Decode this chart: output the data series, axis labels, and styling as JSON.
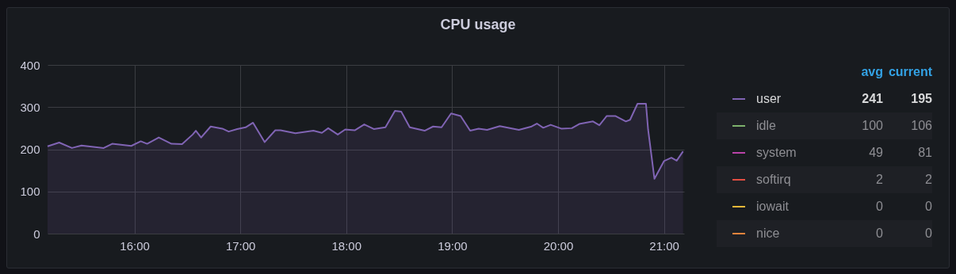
{
  "chart_data": {
    "type": "area",
    "title": "CPU usage",
    "xlim": [
      15.18,
      21.19
    ],
    "ylim": [
      0,
      400
    ],
    "yticks": [
      0,
      100,
      200,
      300,
      400
    ],
    "xticks": [
      {
        "value": 16,
        "label": "16:00"
      },
      {
        "value": 17,
        "label": "17:00"
      },
      {
        "value": 18,
        "label": "18:00"
      },
      {
        "value": 19,
        "label": "19:00"
      },
      {
        "value": 20,
        "label": "20:00"
      },
      {
        "value": 21,
        "label": "21:00"
      }
    ],
    "grid": true,
    "legend": "right",
    "line_style": "solid",
    "series": [
      {
        "name": "user",
        "color": "#8064b4",
        "x": [
          15.18,
          15.29,
          15.41,
          15.5,
          15.71,
          15.79,
          15.97,
          16.06,
          16.12,
          16.23,
          16.35,
          16.45,
          16.55,
          16.58,
          16.63,
          16.72,
          16.83,
          16.89,
          16.97,
          17.05,
          17.12,
          17.23,
          17.33,
          17.38,
          17.52,
          17.69,
          17.77,
          17.83,
          17.92,
          17.99,
          18.08,
          18.17,
          18.26,
          18.37,
          18.46,
          18.52,
          18.6,
          18.74,
          18.82,
          18.9,
          18.99,
          19.08,
          19.17,
          19.25,
          19.33,
          19.45,
          19.63,
          19.75,
          19.8,
          19.86,
          19.93,
          20.03,
          20.13,
          20.2,
          20.33,
          20.39,
          20.46,
          20.54,
          20.64,
          20.68,
          20.75,
          20.83,
          20.85,
          20.91,
          21.0,
          21.07,
          21.12,
          21.18
        ],
        "values": [
          207,
          216,
          203,
          209,
          203,
          213,
          208,
          219,
          213,
          228,
          213,
          212,
          235,
          244,
          228,
          254,
          249,
          242,
          248,
          252,
          263,
          217,
          245,
          245,
          238,
          244,
          239,
          250,
          235,
          247,
          245,
          259,
          248,
          252,
          291,
          289,
          252,
          244,
          254,
          252,
          285,
          279,
          244,
          249,
          246,
          255,
          246,
          254,
          261,
          251,
          258,
          249,
          250,
          260,
          266,
          257,
          279,
          279,
          266,
          270,
          308,
          308,
          247,
          130,
          172,
          180,
          173,
          195
        ]
      },
      {
        "name": "idle",
        "color": "#7eb26d"
      },
      {
        "name": "system",
        "color": "#ba43a9"
      },
      {
        "name": "softirq",
        "color": "#e24d42"
      },
      {
        "name": "iowait",
        "color": "#eab839"
      },
      {
        "name": "nice",
        "color": "#ef843c"
      }
    ],
    "annotations": [
      "avg",
      "current",
      "241",
      "195",
      "100",
      "106",
      "49",
      "81",
      "2",
      "2",
      "0",
      "0",
      "0",
      "0"
    ]
  }
}
